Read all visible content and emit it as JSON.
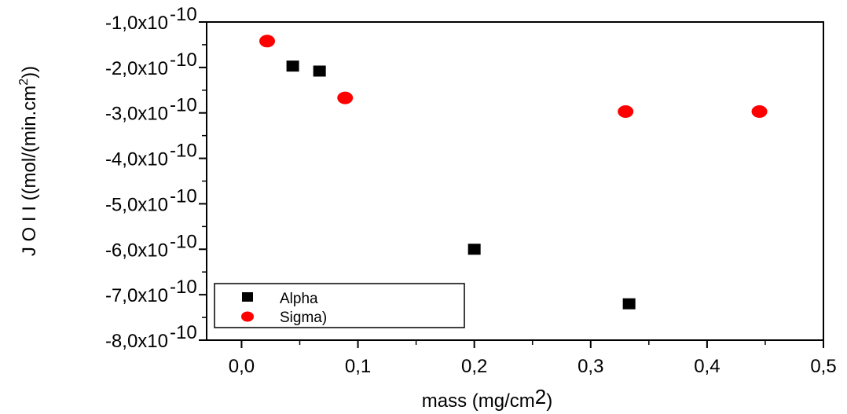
{
  "chart_data": {
    "type": "scatter",
    "xlabel": "mass (mg/cm",
    "xlabel_sup": "2",
    "xlabel_end": ")",
    "ylabel": "J O I I ((mol/(min.cm",
    "ylabel_sup": "2",
    "ylabel_end": "))",
    "xlim": [
      -0.03,
      0.5
    ],
    "ylim": [
      -8e-10,
      -1e-10
    ],
    "x_ticks": [
      {
        "value": 0.0,
        "label": "0,0"
      },
      {
        "value": 0.1,
        "label": "0,1"
      },
      {
        "value": 0.2,
        "label": "0,2"
      },
      {
        "value": 0.3,
        "label": "0,3"
      },
      {
        "value": 0.4,
        "label": "0,4"
      },
      {
        "value": 0.5,
        "label": "0,5"
      }
    ],
    "y_ticks": [
      {
        "value": -1e-10,
        "mantissa": "-1,0x10",
        "exp": "-10"
      },
      {
        "value": -2e-10,
        "mantissa": "-2,0x10",
        "exp": "-10"
      },
      {
        "value": -3e-10,
        "mantissa": "-3,0x10",
        "exp": "-10"
      },
      {
        "value": -4e-10,
        "mantissa": "-4,0x10",
        "exp": "-10"
      },
      {
        "value": -5e-10,
        "mantissa": "-5,0x10",
        "exp": "-10"
      },
      {
        "value": -6e-10,
        "mantissa": "-6,0x10",
        "exp": "-10"
      },
      {
        "value": -7e-10,
        "mantissa": "-7,0x10",
        "exp": "-10"
      },
      {
        "value": -8e-10,
        "mantissa": "-8,0x10",
        "exp": "-10"
      }
    ],
    "series": [
      {
        "name": "Alpha",
        "marker": "square",
        "color": "#000000",
        "points": [
          {
            "x": 0.044,
            "y": -1.97e-10
          },
          {
            "x": 0.067,
            "y": -2.08e-10
          },
          {
            "x": 0.2,
            "y": -6e-10
          },
          {
            "x": 0.333,
            "y": -7.2e-10
          }
        ]
      },
      {
        "name": "Sigma)",
        "marker": "circle",
        "color": "#ff0000",
        "points": [
          {
            "x": 0.022,
            "y": -1.42e-10
          },
          {
            "x": 0.089,
            "y": -2.67e-10
          },
          {
            "x": 0.33,
            "y": -2.97e-10
          },
          {
            "x": 0.445,
            "y": -2.97e-10
          }
        ]
      }
    ],
    "grid": false,
    "legend_position": "bottom-left"
  }
}
